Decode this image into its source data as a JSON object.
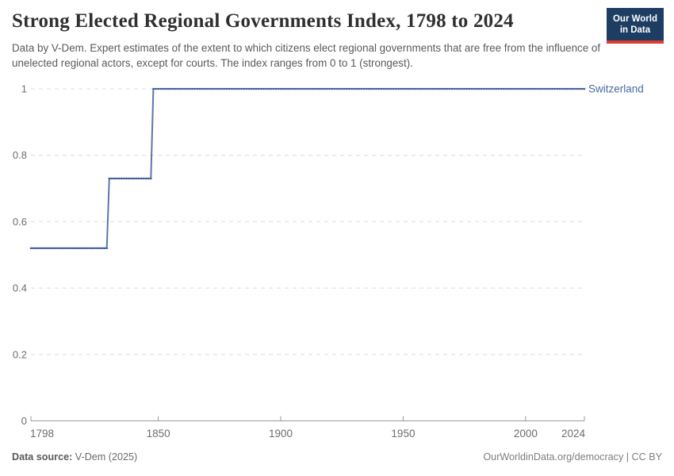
{
  "header": {
    "title": "Strong Elected Regional Governments Index, 1798 to 2024",
    "subtitle": "Data by V-Dem. Expert estimates of the extent to which citizens elect regional governments that are free from the influence of unelected regional actors, except for courts. The index ranges from 0 to 1 (strongest).",
    "logo": {
      "line1": "Our World",
      "line2": "in Data"
    }
  },
  "footer": {
    "source_label": "Data source:",
    "source_value": "V-Dem (2025)",
    "attribution": "OurWorldinData.org/democracy | CC BY"
  },
  "colors": {
    "line": "#5b77a8",
    "marker": "#3e5c97",
    "series_label": "#4C6A9C",
    "grid": "#dddddd",
    "axis": "#999999",
    "tick_text": "#6d6d6d",
    "logo_bg": "#1d3d63",
    "logo_underline": "#dc3d33"
  },
  "chart_data": {
    "type": "line",
    "style": "step-line-with-yearly-markers",
    "title": "Strong Elected Regional Governments Index, 1798 to 2024",
    "xlabel": "",
    "ylabel": "",
    "xlim": [
      1798,
      2024
    ],
    "ylim": [
      0,
      1
    ],
    "x_ticks": [
      1798,
      1850,
      1900,
      1950,
      2000,
      2024
    ],
    "y_ticks": [
      0,
      0.2,
      0.4,
      0.6,
      0.8,
      1
    ],
    "grid": "dashed-horizontal",
    "legend_position": "right-end-of-line",
    "series": [
      {
        "name": "Switzerland",
        "segments": [
          {
            "from_year": 1798,
            "to_year": 1829,
            "value": 0.52
          },
          {
            "from_year": 1830,
            "to_year": 1847,
            "value": 0.73
          },
          {
            "from_year": 1848,
            "to_year": 2024,
            "value": 1.0
          }
        ]
      }
    ]
  }
}
